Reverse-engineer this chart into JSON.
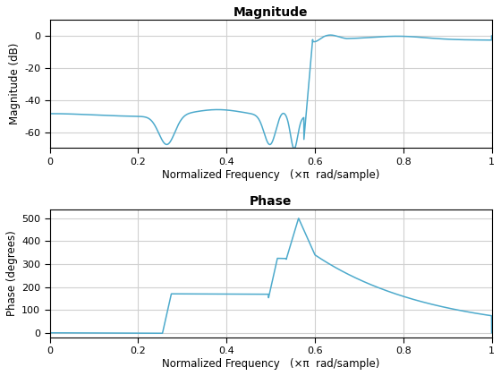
{
  "title_mag": "Magnitude",
  "title_phase": "Phase",
  "xlabel": "Normalized Frequency   (×π  rad/sample)",
  "ylabel_mag": "Magnitude (dB)",
  "ylabel_phase": "Phase (degrees)",
  "line_color": "#4daacc",
  "line_width": 1.1,
  "background_color": "#ffffff",
  "grid_color": "#d0d0d0",
  "mag_ylim": [
    -70,
    10
  ],
  "mag_yticks": [
    0,
    -20,
    -40,
    -60
  ],
  "phase_ylim": [
    -20,
    540
  ],
  "phase_yticks": [
    0,
    100,
    200,
    300,
    400,
    500
  ],
  "xlim": [
    0,
    1
  ],
  "xticks": [
    0,
    0.2,
    0.4,
    0.6,
    0.8,
    1.0
  ],
  "fig_width": 5.6,
  "fig_height": 4.2,
  "dpi": 100
}
